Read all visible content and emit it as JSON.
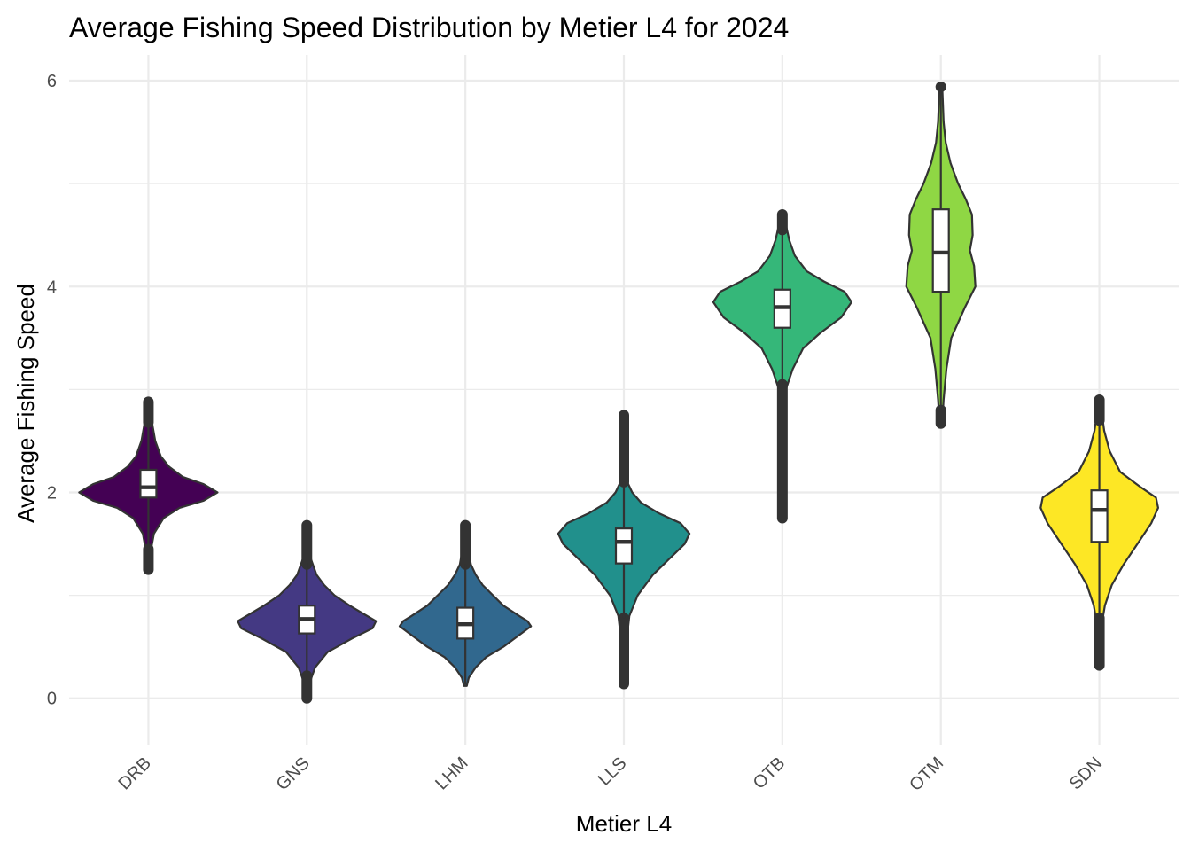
{
  "chart_data": {
    "type": "violin",
    "title": "Average Fishing Speed Distribution by Metier L4 for 2024",
    "xlabel": "Metier L4",
    "ylabel": "Average Fishing Speed",
    "ylim": [
      -0.45,
      6.25
    ],
    "yticks": [
      0,
      2,
      4,
      6
    ],
    "yticks_minor": [
      1,
      3,
      5
    ],
    "grid": true,
    "legend": "none",
    "categories": [
      "DRB",
      "GNS",
      "LHM",
      "LLS",
      "OTB",
      "OTM",
      "SDN"
    ],
    "series": [
      {
        "category": "DRB",
        "color": "#440154",
        "min": 1.28,
        "max": 2.87,
        "box": {
          "q1": 1.95,
          "median": 2.05,
          "q3": 2.22
        },
        "whisker": [
          1.45,
          2.68
        ],
        "outliers": {
          "low": [
            1.25,
            1.45
          ],
          "high": [
            2.68,
            2.88
          ]
        },
        "density": [
          [
            1.28,
            0.02
          ],
          [
            1.45,
            0.04
          ],
          [
            1.6,
            0.08
          ],
          [
            1.75,
            0.22
          ],
          [
            1.85,
            0.45
          ],
          [
            1.92,
            0.8
          ],
          [
            2.0,
            1.0
          ],
          [
            2.08,
            0.8
          ],
          [
            2.15,
            0.5
          ],
          [
            2.25,
            0.3
          ],
          [
            2.35,
            0.18
          ],
          [
            2.5,
            0.1
          ],
          [
            2.65,
            0.06
          ],
          [
            2.87,
            0.03
          ]
        ]
      },
      {
        "category": "GNS",
        "color": "#443983",
        "min": 0.0,
        "max": 1.68,
        "box": {
          "q1": 0.63,
          "median": 0.77,
          "q3": 0.9
        },
        "whisker": [
          0.25,
          1.32
        ],
        "outliers": {
          "low": [
            0.0,
            0.22
          ],
          "high": [
            1.3,
            1.68
          ]
        },
        "density": [
          [
            0.0,
            0.02
          ],
          [
            0.15,
            0.04
          ],
          [
            0.3,
            0.12
          ],
          [
            0.45,
            0.3
          ],
          [
            0.58,
            0.65
          ],
          [
            0.68,
            0.95
          ],
          [
            0.75,
            1.0
          ],
          [
            0.82,
            0.82
          ],
          [
            0.9,
            0.62
          ],
          [
            1.0,
            0.4
          ],
          [
            1.1,
            0.25
          ],
          [
            1.2,
            0.14
          ],
          [
            1.35,
            0.06
          ],
          [
            1.5,
            0.04
          ],
          [
            1.68,
            0.02
          ]
        ]
      },
      {
        "category": "LHM",
        "color": "#31688e",
        "min": 0.12,
        "max": 1.68,
        "box": {
          "q1": 0.58,
          "median": 0.72,
          "q3": 0.88
        },
        "whisker": [
          0.13,
          1.3
        ],
        "outliers": {
          "low": [],
          "high": [
            1.3,
            1.68
          ]
        },
        "density": [
          [
            0.12,
            0.02
          ],
          [
            0.2,
            0.05
          ],
          [
            0.3,
            0.15
          ],
          [
            0.4,
            0.3
          ],
          [
            0.5,
            0.55
          ],
          [
            0.6,
            0.75
          ],
          [
            0.7,
            0.95
          ],
          [
            0.75,
            0.9
          ],
          [
            0.8,
            0.78
          ],
          [
            0.9,
            0.55
          ],
          [
            1.0,
            0.4
          ],
          [
            1.1,
            0.25
          ],
          [
            1.2,
            0.15
          ],
          [
            1.3,
            0.08
          ],
          [
            1.45,
            0.04
          ],
          [
            1.68,
            0.02
          ]
        ]
      },
      {
        "category": "LLS",
        "color": "#21908c",
        "min": 0.14,
        "max": 2.75,
        "box": {
          "q1": 1.31,
          "median": 1.52,
          "q3": 1.65
        },
        "whisker": [
          0.78,
          2.1
        ],
        "outliers": {
          "low": [
            0.14,
            0.78
          ],
          "high": [
            2.1,
            2.75
          ]
        },
        "density": [
          [
            0.14,
            0.02
          ],
          [
            0.5,
            0.03
          ],
          [
            0.8,
            0.08
          ],
          [
            1.0,
            0.2
          ],
          [
            1.2,
            0.42
          ],
          [
            1.35,
            0.65
          ],
          [
            1.5,
            0.88
          ],
          [
            1.6,
            0.95
          ],
          [
            1.7,
            0.82
          ],
          [
            1.8,
            0.5
          ],
          [
            1.9,
            0.25
          ],
          [
            2.0,
            0.12
          ],
          [
            2.1,
            0.05
          ],
          [
            2.4,
            0.03
          ],
          [
            2.75,
            0.02
          ]
        ]
      },
      {
        "category": "OTB",
        "color": "#35b779",
        "min": 1.75,
        "max": 4.7,
        "box": {
          "q1": 3.6,
          "median": 3.8,
          "q3": 3.97
        },
        "whisker": [
          3.05,
          4.55
        ],
        "outliers": {
          "low": [
            1.75,
            3.05
          ],
          "high": [
            4.55,
            4.7
          ]
        },
        "density": [
          [
            1.75,
            0.02
          ],
          [
            2.5,
            0.02
          ],
          [
            3.0,
            0.05
          ],
          [
            3.2,
            0.15
          ],
          [
            3.4,
            0.3
          ],
          [
            3.55,
            0.55
          ],
          [
            3.7,
            0.85
          ],
          [
            3.85,
            1.0
          ],
          [
            3.95,
            0.9
          ],
          [
            4.05,
            0.6
          ],
          [
            4.15,
            0.35
          ],
          [
            4.3,
            0.18
          ],
          [
            4.45,
            0.1
          ],
          [
            4.6,
            0.05
          ],
          [
            4.7,
            0.03
          ]
        ]
      },
      {
        "category": "OTM",
        "color": "#8fd744",
        "min": 2.67,
        "max": 5.94,
        "box": {
          "q1": 3.95,
          "median": 4.33,
          "q3": 4.75
        },
        "whisker": [
          2.8,
          5.9
        ],
        "outliers": {
          "low": [
            2.67,
            2.8
          ],
          "high": [
            5.94
          ]
        },
        "density": [
          [
            2.67,
            0.02
          ],
          [
            2.9,
            0.04
          ],
          [
            3.2,
            0.08
          ],
          [
            3.5,
            0.15
          ],
          [
            3.8,
            0.35
          ],
          [
            4.0,
            0.5
          ],
          [
            4.2,
            0.48
          ],
          [
            4.35,
            0.42
          ],
          [
            4.5,
            0.46
          ],
          [
            4.7,
            0.45
          ],
          [
            4.85,
            0.36
          ],
          [
            5.0,
            0.25
          ],
          [
            5.2,
            0.14
          ],
          [
            5.4,
            0.07
          ],
          [
            5.6,
            0.04
          ],
          [
            5.94,
            0.02
          ]
        ]
      },
      {
        "category": "SDN",
        "color": "#fde725",
        "min": 0.32,
        "max": 2.9,
        "box": {
          "q1": 1.52,
          "median": 1.83,
          "q3": 2.02
        },
        "whisker": [
          0.8,
          2.65
        ],
        "outliers": {
          "low": [
            0.32,
            0.78
          ],
          "high": [
            2.7,
            2.9
          ]
        },
        "density": [
          [
            0.32,
            0.02
          ],
          [
            0.7,
            0.03
          ],
          [
            0.9,
            0.08
          ],
          [
            1.1,
            0.18
          ],
          [
            1.3,
            0.35
          ],
          [
            1.5,
            0.55
          ],
          [
            1.7,
            0.75
          ],
          [
            1.85,
            0.85
          ],
          [
            1.95,
            0.82
          ],
          [
            2.05,
            0.6
          ],
          [
            2.2,
            0.3
          ],
          [
            2.4,
            0.15
          ],
          [
            2.6,
            0.07
          ],
          [
            2.75,
            0.04
          ],
          [
            2.9,
            0.02
          ]
        ]
      }
    ]
  }
}
